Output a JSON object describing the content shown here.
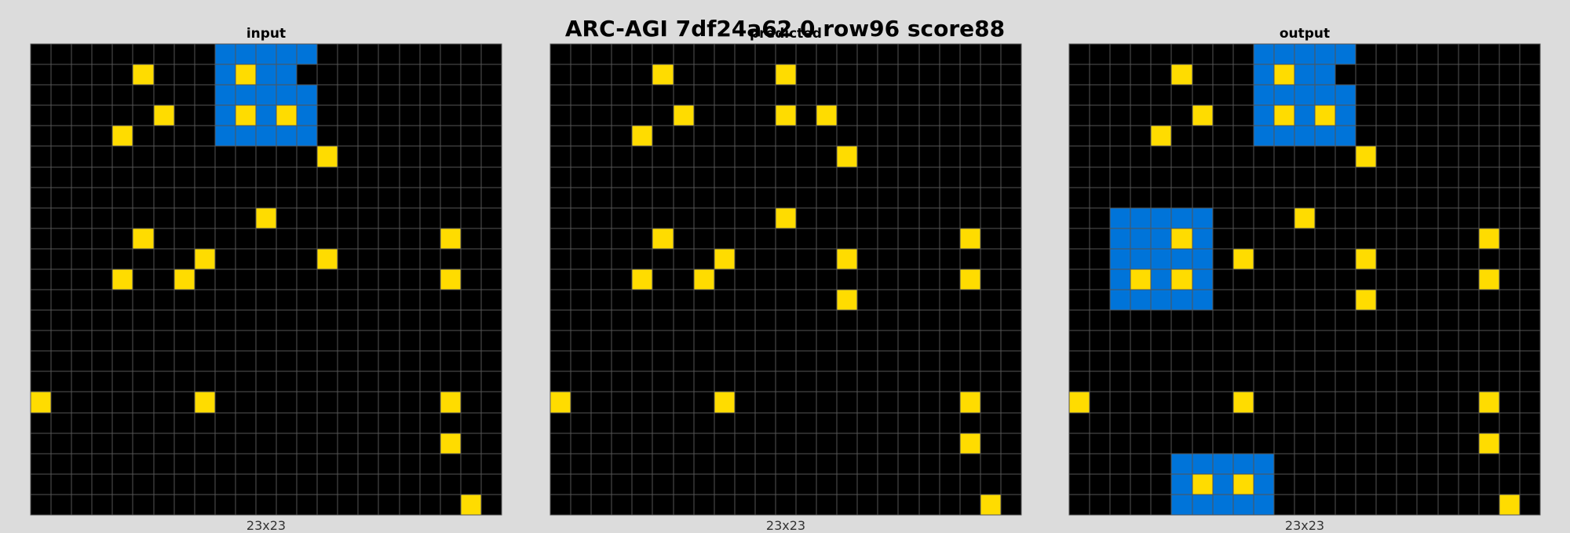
{
  "title": "ARC-AGI 7df24a62 0 row96 score88",
  "palette": {
    "0": "#000000",
    "1": "#0074d9",
    "4": "#ffdc00"
  },
  "panels": [
    {
      "label": "input",
      "dims": "23x23",
      "rows": [
        "00000000011111000000000",
        "00000400014110000000000",
        "00000000011111000000000",
        "00000040014141000000000",
        "00004000011111000000000",
        "00000000000000400000000",
        "00000000000000000000000",
        "00000000000000000000000",
        "00000000000400000000000",
        "00000400000000000000400",
        "00000000400000400000000",
        "00004004000000000000400",
        "00000000000000000000000",
        "00000000000000000000000",
        "00000000000000000000000",
        "00000000000000000000000",
        "00000000000000000000000",
        "40000000400000000000400",
        "00000000000000000000000",
        "00000000000000000000400",
        "00000000000000000000000",
        "00000000000000000000000",
        "00000000000000000000040"
      ]
    },
    {
      "label": "predicted",
      "dims": "23x23",
      "rows": [
        "00000000000000000000000",
        "00000400000400000000000",
        "00000000000000000000000",
        "00000040000404000000000",
        "00004000000000000000000",
        "00000000000000400000000",
        "00000000000000000000000",
        "00000000000000000000000",
        "00000000000400000000000",
        "00000400000000000000400",
        "00000000400000400000000",
        "00004004000000000000400",
        "00000000000000400000000",
        "00000000000000000000000",
        "00000000000000000000000",
        "00000000000000000000000",
        "00000000000000000000000",
        "40000000400000000000400",
        "00000000000000000000000",
        "00000000000000000000400",
        "00000000000000000000000",
        "00000000000000000000000",
        "00000000000000000000040"
      ]
    },
    {
      "label": "output",
      "dims": "23x23",
      "rows": [
        "00000000011111000000000",
        "00000400014110000000000",
        "00000000011111000000000",
        "00000040014141000000000",
        "00004000011111000000000",
        "00000000000000400000000",
        "00000000000000000000000",
        "00000000000000000000000",
        "00111110000400000000000",
        "00111410000000000000400",
        "00111110400000400000000",
        "00141410000000000000400",
        "00111110000000400000000",
        "00000000000000000000000",
        "00000000000000000000000",
        "00000000000000000000000",
        "00000000000000000000000",
        "40000000400000000000400",
        "00000000000000000000000",
        "00000000000000000000400",
        "00000111110000000000000",
        "00000141410000000000000",
        "00000111110000000000040"
      ]
    }
  ]
}
